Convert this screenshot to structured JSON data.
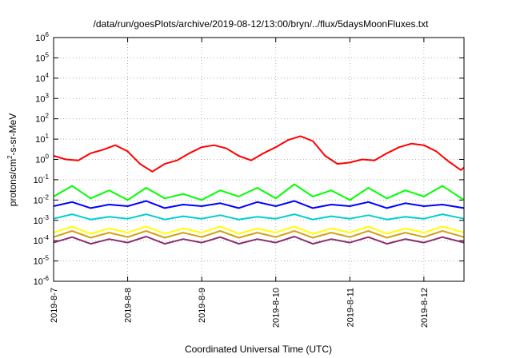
{
  "chart_data": {
    "type": "line",
    "title": "/data/run/goesPlots/archive/2019-08-12/13:00/bryn/../flux/5daysMoonFluxes.txt",
    "xlabel": "Coordinated Universal Time (UTC)",
    "ylabel": "protons/cm2-s-sr-MeV",
    "ylabel_parts": {
      "pre": "protons/cm",
      "sup": "2",
      "post": "-s-sr-MeV"
    },
    "y_scale": "log",
    "ylim": [
      1e-06,
      1000000.0
    ],
    "y_ticks": [
      {
        "value": 1e-06,
        "base": "10",
        "exp": "-6"
      },
      {
        "value": 1e-05,
        "base": "10",
        "exp": "-5"
      },
      {
        "value": 0.0001,
        "base": "10",
        "exp": "-4"
      },
      {
        "value": 0.001,
        "base": "10",
        "exp": "-3"
      },
      {
        "value": 0.01,
        "base": "10",
        "exp": "-2"
      },
      {
        "value": 0.1,
        "base": "10",
        "exp": "-1"
      },
      {
        "value": 1,
        "base": "10",
        "exp": "0"
      },
      {
        "value": 10.0,
        "base": "10",
        "exp": "1"
      },
      {
        "value": 100.0,
        "base": "10",
        "exp": "2"
      },
      {
        "value": 1000.0,
        "base": "10",
        "exp": "3"
      },
      {
        "value": 10000.0,
        "base": "10",
        "exp": "4"
      },
      {
        "value": 100000.0,
        "base": "10",
        "exp": "5"
      },
      {
        "value": 1000000.0,
        "base": "10",
        "exp": "6"
      }
    ],
    "xlim": [
      "2019-08-07 00:00",
      "2019-08-12 13:00"
    ],
    "x_ticks": [
      "2019-8-7",
      "2019-8-8",
      "2019-8-9",
      "2019-8-10",
      "2019-8-11",
      "2019-8-12"
    ],
    "grid": true,
    "series": [
      {
        "color": "#ff0000",
        "x": [
          "2019-08-07 00:00",
          "2019-08-07 04:00",
          "2019-08-07 08:00",
          "2019-08-07 12:00",
          "2019-08-07 16:00",
          "2019-08-07 20:00",
          "2019-08-08 00:00",
          "2019-08-08 04:00",
          "2019-08-08 08:00",
          "2019-08-08 12:00",
          "2019-08-08 16:00",
          "2019-08-08 20:00",
          "2019-08-09 00:00",
          "2019-08-09 04:00",
          "2019-08-09 08:00",
          "2019-08-09 12:00",
          "2019-08-09 16:00",
          "2019-08-09 20:00",
          "2019-08-10 00:00",
          "2019-08-10 04:00",
          "2019-08-10 08:00",
          "2019-08-10 12:00",
          "2019-08-10 16:00",
          "2019-08-10 20:00",
          "2019-08-11 00:00",
          "2019-08-11 04:00",
          "2019-08-11 08:00",
          "2019-08-11 12:00",
          "2019-08-11 16:00",
          "2019-08-11 20:00",
          "2019-08-12 00:00",
          "2019-08-12 04:00",
          "2019-08-12 08:00",
          "2019-08-12 12:00",
          "2019-08-12 13:00"
        ],
        "values": [
          1.5,
          1.0,
          0.9,
          2.0,
          3.0,
          5.0,
          2.5,
          0.6,
          0.25,
          0.6,
          0.9,
          2.0,
          4.0,
          5.0,
          3.5,
          1.5,
          0.9,
          2.0,
          4.0,
          9.0,
          14.0,
          8.0,
          1.5,
          0.6,
          0.7,
          1.0,
          0.9,
          2.0,
          4.0,
          6.0,
          5.0,
          2.5,
          0.8,
          0.3,
          0.4
        ]
      },
      {
        "color": "#00ff00",
        "x": [
          "2019-08-07 00:00",
          "2019-08-07 06:00",
          "2019-08-07 12:00",
          "2019-08-07 18:00",
          "2019-08-08 00:00",
          "2019-08-08 06:00",
          "2019-08-08 12:00",
          "2019-08-08 18:00",
          "2019-08-09 00:00",
          "2019-08-09 06:00",
          "2019-08-09 12:00",
          "2019-08-09 18:00",
          "2019-08-10 00:00",
          "2019-08-10 06:00",
          "2019-08-10 12:00",
          "2019-08-10 18:00",
          "2019-08-11 00:00",
          "2019-08-11 06:00",
          "2019-08-11 12:00",
          "2019-08-11 18:00",
          "2019-08-12 00:00",
          "2019-08-12 06:00",
          "2019-08-12 13:00"
        ],
        "values": [
          0.015,
          0.05,
          0.012,
          0.03,
          0.01,
          0.04,
          0.012,
          0.02,
          0.01,
          0.03,
          0.015,
          0.04,
          0.012,
          0.06,
          0.015,
          0.03,
          0.01,
          0.04,
          0.012,
          0.03,
          0.015,
          0.05,
          0.01
        ]
      },
      {
        "color": "#0000ff",
        "x": [
          "2019-08-07 00:00",
          "2019-08-07 06:00",
          "2019-08-07 12:00",
          "2019-08-07 18:00",
          "2019-08-08 00:00",
          "2019-08-08 06:00",
          "2019-08-08 12:00",
          "2019-08-08 18:00",
          "2019-08-09 00:00",
          "2019-08-09 06:00",
          "2019-08-09 12:00",
          "2019-08-09 18:00",
          "2019-08-10 00:00",
          "2019-08-10 06:00",
          "2019-08-10 12:00",
          "2019-08-10 18:00",
          "2019-08-11 00:00",
          "2019-08-11 06:00",
          "2019-08-11 12:00",
          "2019-08-11 18:00",
          "2019-08-12 00:00",
          "2019-08-12 06:00",
          "2019-08-12 13:00"
        ],
        "values": [
          0.005,
          0.008,
          0.004,
          0.006,
          0.005,
          0.009,
          0.004,
          0.006,
          0.005,
          0.007,
          0.004,
          0.008,
          0.005,
          0.009,
          0.004,
          0.006,
          0.005,
          0.008,
          0.004,
          0.007,
          0.005,
          0.006,
          0.004
        ]
      },
      {
        "color": "#00ced1",
        "x": [
          "2019-08-07 00:00",
          "2019-08-07 06:00",
          "2019-08-07 12:00",
          "2019-08-07 18:00",
          "2019-08-08 00:00",
          "2019-08-08 06:00",
          "2019-08-08 12:00",
          "2019-08-08 18:00",
          "2019-08-09 00:00",
          "2019-08-09 06:00",
          "2019-08-09 12:00",
          "2019-08-09 18:00",
          "2019-08-10 00:00",
          "2019-08-10 06:00",
          "2019-08-10 12:00",
          "2019-08-10 18:00",
          "2019-08-11 00:00",
          "2019-08-11 06:00",
          "2019-08-11 12:00",
          "2019-08-11 18:00",
          "2019-08-12 00:00",
          "2019-08-12 06:00",
          "2019-08-12 13:00"
        ],
        "values": [
          0.0012,
          0.002,
          0.0011,
          0.0015,
          0.0012,
          0.002,
          0.0011,
          0.0016,
          0.0012,
          0.0018,
          0.0011,
          0.0015,
          0.0012,
          0.002,
          0.0011,
          0.0016,
          0.0012,
          0.0018,
          0.0011,
          0.0015,
          0.0012,
          0.002,
          0.0012
        ]
      },
      {
        "color": "#ffff00",
        "x": [
          "2019-08-07 00:00",
          "2019-08-07 06:00",
          "2019-08-07 12:00",
          "2019-08-07 18:00",
          "2019-08-08 00:00",
          "2019-08-08 06:00",
          "2019-08-08 12:00",
          "2019-08-08 18:00",
          "2019-08-09 00:00",
          "2019-08-09 06:00",
          "2019-08-09 12:00",
          "2019-08-09 18:00",
          "2019-08-10 00:00",
          "2019-08-10 06:00",
          "2019-08-10 12:00",
          "2019-08-10 18:00",
          "2019-08-11 00:00",
          "2019-08-11 06:00",
          "2019-08-11 12:00",
          "2019-08-11 18:00",
          "2019-08-12 00:00",
          "2019-08-12 06:00",
          "2019-08-12 13:00"
        ],
        "values": [
          0.00025,
          0.0005,
          0.00022,
          0.0004,
          0.00025,
          0.0005,
          0.00022,
          0.0004,
          0.00025,
          0.0005,
          0.00022,
          0.0004,
          0.00025,
          0.0005,
          0.00022,
          0.0004,
          0.00025,
          0.0005,
          0.00022,
          0.0004,
          0.00025,
          0.0005,
          0.00025
        ]
      },
      {
        "color": "#d4a017",
        "x": [
          "2019-08-07 00:00",
          "2019-08-07 06:00",
          "2019-08-07 12:00",
          "2019-08-07 18:00",
          "2019-08-08 00:00",
          "2019-08-08 06:00",
          "2019-08-08 12:00",
          "2019-08-08 18:00",
          "2019-08-09 00:00",
          "2019-08-09 06:00",
          "2019-08-09 12:00",
          "2019-08-09 18:00",
          "2019-08-10 00:00",
          "2019-08-10 06:00",
          "2019-08-10 12:00",
          "2019-08-10 18:00",
          "2019-08-11 00:00",
          "2019-08-11 06:00",
          "2019-08-11 12:00",
          "2019-08-11 18:00",
          "2019-08-12 00:00",
          "2019-08-12 06:00",
          "2019-08-12 13:00"
        ],
        "values": [
          0.00015,
          0.0003,
          0.00014,
          0.00025,
          0.00015,
          0.0003,
          0.00014,
          0.00025,
          0.00015,
          0.0003,
          0.00014,
          0.00025,
          0.00015,
          0.0003,
          0.00014,
          0.00025,
          0.00015,
          0.0003,
          0.00014,
          0.00025,
          0.00015,
          0.0003,
          0.00015
        ]
      },
      {
        "color": "#8b2e6e",
        "x": [
          "2019-08-07 00:00",
          "2019-08-07 06:00",
          "2019-08-07 12:00",
          "2019-08-07 18:00",
          "2019-08-08 00:00",
          "2019-08-08 06:00",
          "2019-08-08 12:00",
          "2019-08-08 18:00",
          "2019-08-09 00:00",
          "2019-08-09 06:00",
          "2019-08-09 12:00",
          "2019-08-09 18:00",
          "2019-08-10 00:00",
          "2019-08-10 06:00",
          "2019-08-10 12:00",
          "2019-08-10 18:00",
          "2019-08-11 00:00",
          "2019-08-11 06:00",
          "2019-08-11 12:00",
          "2019-08-11 18:00",
          "2019-08-12 00:00",
          "2019-08-12 06:00",
          "2019-08-12 13:00"
        ],
        "values": [
          8e-05,
          0.00015,
          7e-05,
          0.00012,
          8e-05,
          0.00016,
          7e-05,
          0.00012,
          8e-05,
          0.00015,
          7e-05,
          0.00012,
          8e-05,
          0.00016,
          7e-05,
          0.00012,
          8e-05,
          0.00015,
          7e-05,
          0.00012,
          8e-05,
          0.00015,
          8e-05
        ]
      }
    ]
  }
}
